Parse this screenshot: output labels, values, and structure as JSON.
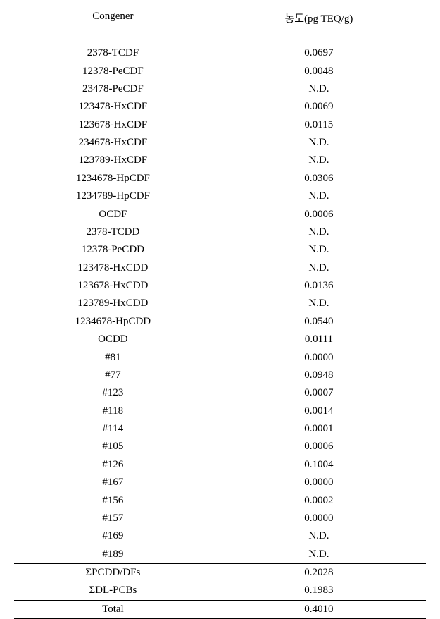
{
  "table": {
    "columns": [
      "Congener",
      "농도(pg TEQ/g)"
    ],
    "rows": [
      {
        "congener": "2378-TCDF",
        "value": "0.0697"
      },
      {
        "congener": "12378-PeCDF",
        "value": "0.0048"
      },
      {
        "congener": "23478-PeCDF",
        "value": "N.D."
      },
      {
        "congener": "123478-HxCDF",
        "value": "0.0069"
      },
      {
        "congener": "123678-HxCDF",
        "value": "0.0115"
      },
      {
        "congener": "234678-HxCDF",
        "value": "N.D."
      },
      {
        "congener": "123789-HxCDF",
        "value": "N.D."
      },
      {
        "congener": "1234678-HpCDF",
        "value": "0.0306"
      },
      {
        "congener": "1234789-HpCDF",
        "value": "N.D."
      },
      {
        "congener": "OCDF",
        "value": "0.0006"
      },
      {
        "congener": "2378-TCDD",
        "value": "N.D."
      },
      {
        "congener": "12378-PeCDD",
        "value": "N.D."
      },
      {
        "congener": "123478-HxCDD",
        "value": "N.D."
      },
      {
        "congener": "123678-HxCDD",
        "value": "0.0136"
      },
      {
        "congener": "123789-HxCDD",
        "value": "N.D."
      },
      {
        "congener": "1234678-HpCDD",
        "value": "0.0540"
      },
      {
        "congener": "OCDD",
        "value": "0.0111"
      },
      {
        "congener": "#81",
        "value": "0.0000"
      },
      {
        "congener": "#77",
        "value": "0.0948"
      },
      {
        "congener": "#123",
        "value": "0.0007"
      },
      {
        "congener": "#118",
        "value": "0.0014"
      },
      {
        "congener": "#114",
        "value": "0.0001"
      },
      {
        "congener": "#105",
        "value": "0.0006"
      },
      {
        "congener": "#126",
        "value": "0.1004"
      },
      {
        "congener": "#167",
        "value": "0.0000"
      },
      {
        "congener": "#156",
        "value": "0.0002"
      },
      {
        "congener": "#157",
        "value": "0.0000"
      },
      {
        "congener": "#169",
        "value": "N.D."
      },
      {
        "congener": "#189",
        "value": "N.D."
      }
    ],
    "summary": [
      {
        "congener": "ΣPCDD/DFs",
        "value": "0.2028"
      },
      {
        "congener": "ΣDL-PCBs",
        "value": "0.1983"
      }
    ],
    "total": {
      "congener": "Total",
      "value": "0.4010"
    }
  }
}
